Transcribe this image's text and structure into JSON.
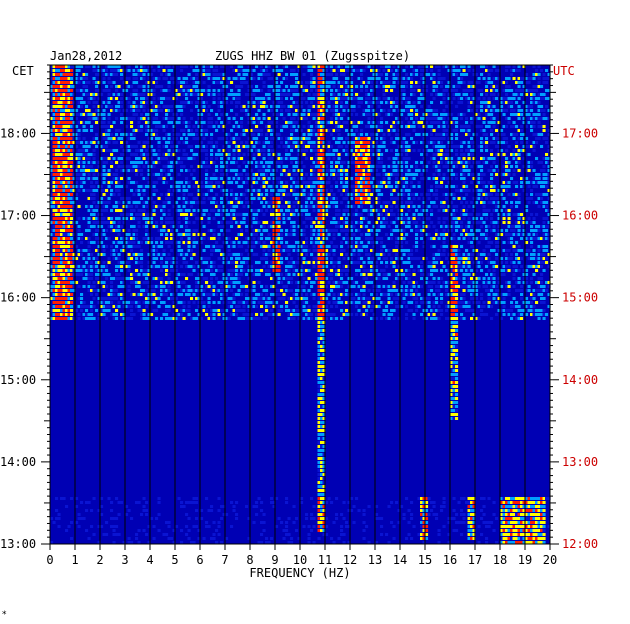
{
  "chart_data": {
    "type": "heatmap",
    "title": "ZUGS HHZ BW 01 (Zugsspitze)",
    "date": "Jan28,2012",
    "xlabel": "FREQUENCY (HZ)",
    "left_axis_label": "CET",
    "right_axis_label": "UTC",
    "xlim": [
      0,
      20
    ],
    "x_ticks": [
      0,
      1,
      2,
      3,
      4,
      5,
      6,
      7,
      8,
      9,
      10,
      11,
      12,
      13,
      14,
      15,
      16,
      17,
      18,
      19,
      20
    ],
    "y_ticks_cet": [
      "18:00",
      "17:00",
      "16:00",
      "15:00",
      "14:00",
      "13:00"
    ],
    "y_ticks_utc": [
      "17:00",
      "16:00",
      "15:00",
      "14:00",
      "13:00",
      "12:00"
    ],
    "time_range_cet": [
      "13:00",
      "18:50"
    ],
    "colors": {
      "background": "#0000b4",
      "low": "#0a14d2",
      "mid": "#00a0ff",
      "high": "#ffff00",
      "peak": "#ff2000",
      "utc_text": "#cc0000"
    },
    "features": [
      {
        "name": "low-frequency band",
        "freq_hz": [
          0.1,
          0.8
        ],
        "cet_range": [
          "15:45",
          "18:50"
        ]
      },
      {
        "name": "tremor line",
        "freq_hz": 10.8,
        "cet_range": [
          "13:10",
          "18:50"
        ]
      },
      {
        "name": "line 9 Hz",
        "freq_hz": 9.0,
        "cet_range": [
          "16:20",
          "17:15"
        ]
      },
      {
        "name": "gliding tremor",
        "freq_hz": [
          12.2,
          12.7
        ],
        "cet_range": [
          "17:10",
          "18:00"
        ]
      },
      {
        "name": "line 16 Hz",
        "freq_hz": 16.1,
        "cet_range": [
          "14:30",
          "16:40"
        ]
      },
      {
        "name": "high-frequency burst",
        "freq_hz": [
          18.0,
          19.8
        ],
        "cet_range": [
          "13:00",
          "13:35"
        ]
      },
      {
        "name": "burst 14.9 Hz",
        "freq_hz": 14.9,
        "cet_range": [
          "13:05",
          "13:35"
        ]
      },
      {
        "name": "burst 16.8 Hz",
        "freq_hz": 16.8,
        "cet_range": [
          "13:05",
          "13:35"
        ]
      }
    ],
    "corner_mark": "*"
  }
}
